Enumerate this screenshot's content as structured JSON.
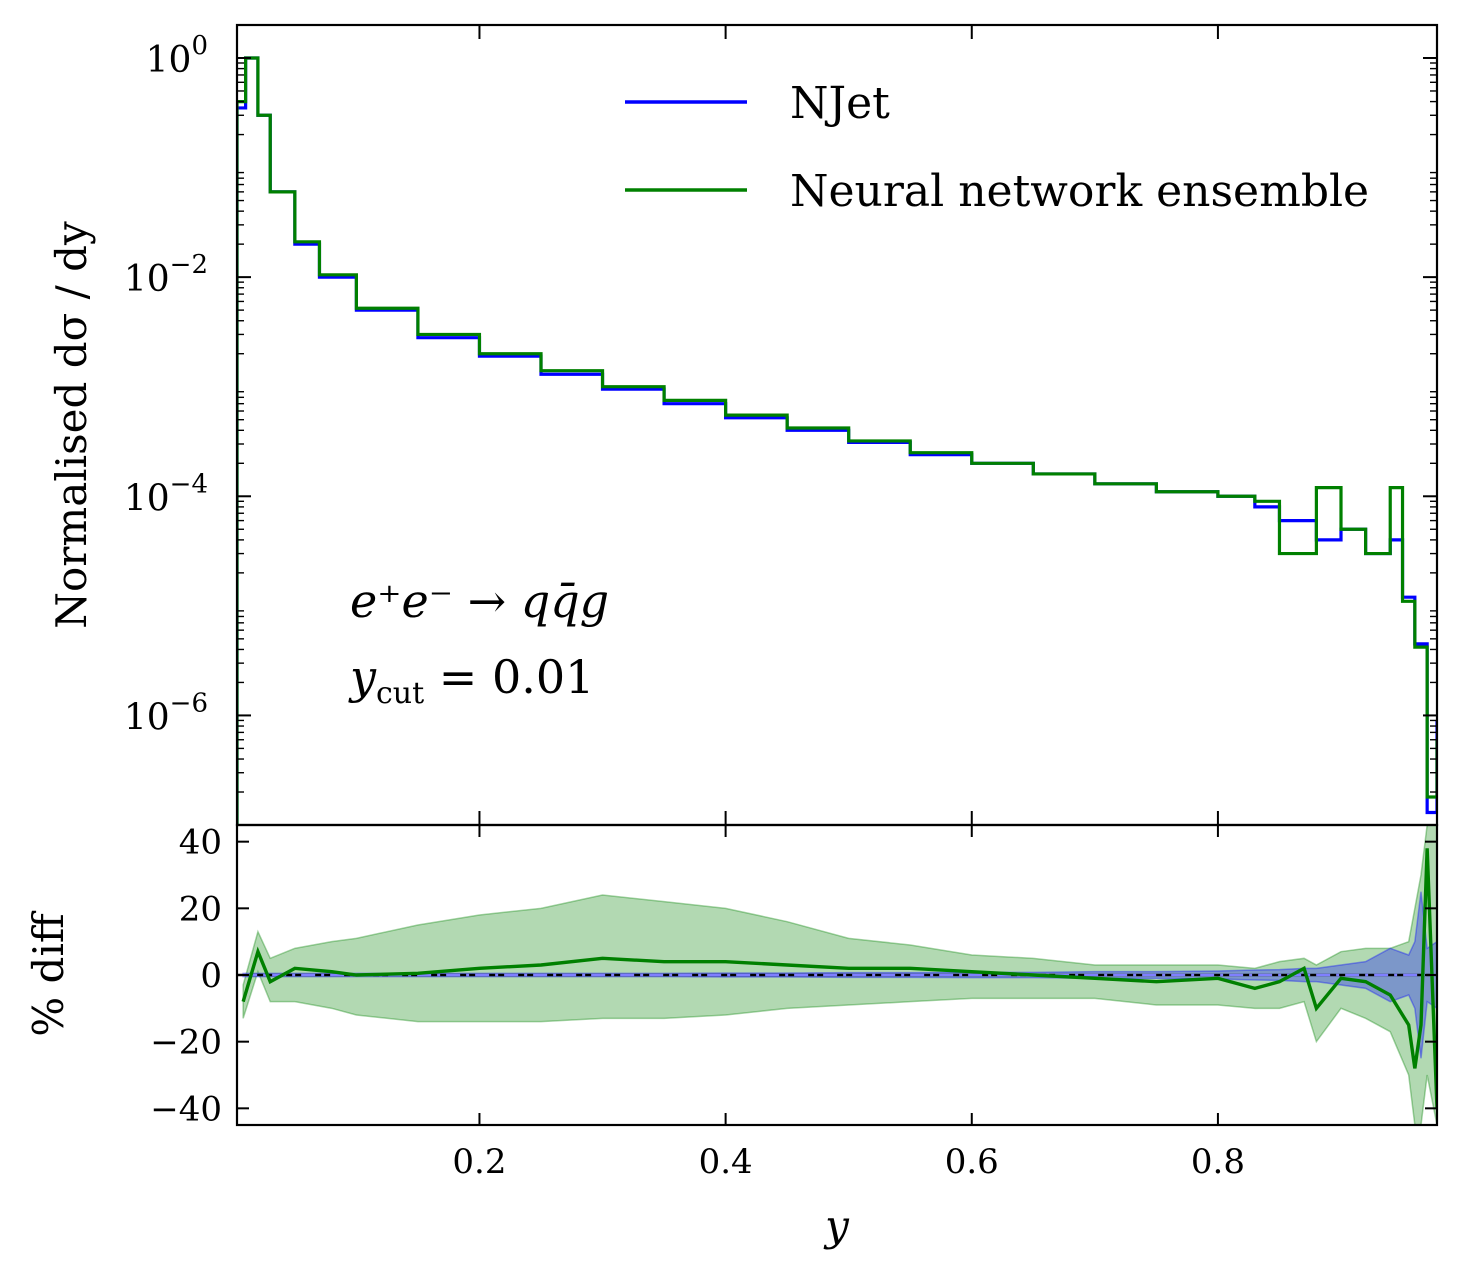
{
  "chart_data": [
    {
      "type": "line",
      "panel": "main",
      "ylabel": "Normalised dσ / dy",
      "yscale": "log",
      "xlim": [
        0.003,
        0.978
      ],
      "ylim": [
        1e-07,
        2
      ],
      "y_ticks": [
        {
          "value": 1,
          "base": "10",
          "exp": "0"
        },
        {
          "value": 0.01,
          "base": "10",
          "exp": "−2"
        },
        {
          "value": 0.0001,
          "base": "10",
          "exp": "−4"
        },
        {
          "value": 1e-06,
          "base": "10",
          "exp": "−6"
        }
      ],
      "legend": {
        "position": "top-right",
        "entries": [
          "NJet",
          "Neural network ensemble"
        ]
      },
      "annotations": [
        {
          "name": "process",
          "text": "e⁺e⁻ → qq̄g"
        },
        {
          "name": "ycut",
          "text": "y",
          "sub": "cut",
          "rest": " = 0.01"
        }
      ],
      "series": [
        {
          "name": "NJet",
          "color": "#0000ff",
          "x": [
            0.003,
            0.01,
            0.02,
            0.03,
            0.05,
            0.07,
            0.1,
            0.15,
            0.2,
            0.25,
            0.3,
            0.35,
            0.4,
            0.45,
            0.5,
            0.55,
            0.6,
            0.65,
            0.7,
            0.75,
            0.8,
            0.83,
            0.85,
            0.88,
            0.9,
            0.92,
            0.94,
            0.95,
            0.96,
            0.97,
            0.978
          ],
          "y": [
            0.35,
            1.0,
            0.3,
            0.06,
            0.02,
            0.01,
            0.005,
            0.0028,
            0.0019,
            0.0013,
            0.00095,
            0.0007,
            0.00052,
            0.0004,
            0.00031,
            0.00024,
            0.0002,
            0.00016,
            0.00013,
            0.00011,
            0.0001,
            8e-05,
            6e-05,
            4e-05,
            5e-05,
            3e-05,
            4e-05,
            1.2e-05,
            4.5e-06,
            1.3e-07,
            9e-07
          ]
        },
        {
          "name": "Neural network ensemble",
          "color": "#008000",
          "x": [
            0.003,
            0.01,
            0.02,
            0.03,
            0.05,
            0.07,
            0.1,
            0.15,
            0.2,
            0.25,
            0.3,
            0.35,
            0.4,
            0.45,
            0.5,
            0.55,
            0.6,
            0.65,
            0.7,
            0.75,
            0.8,
            0.83,
            0.85,
            0.88,
            0.9,
            0.92,
            0.94,
            0.95,
            0.96,
            0.97,
            0.978
          ],
          "y": [
            0.4,
            1.0,
            0.3,
            0.06,
            0.021,
            0.0105,
            0.0052,
            0.003,
            0.002,
            0.0014,
            0.001,
            0.00075,
            0.00055,
            0.00042,
            0.00032,
            0.00025,
            0.0002,
            0.00016,
            0.00013,
            0.00011,
            0.0001,
            9e-05,
            3e-05,
            0.00012,
            5e-05,
            3e-05,
            0.00012,
            1.1e-05,
            4.2e-06,
            1.8e-07,
            6e-07
          ]
        }
      ]
    },
    {
      "type": "line",
      "panel": "ratio",
      "xlabel": "y",
      "ylabel": "% diff",
      "xlim": [
        0.003,
        0.978
      ],
      "ylim": [
        -45,
        45
      ],
      "x_ticks": [
        0.2,
        0.4,
        0.6,
        0.8
      ],
      "y_ticks": [
        {
          "value": 40,
          "label": "40"
        },
        {
          "value": 20,
          "label": "20"
        },
        {
          "value": 0,
          "label": "0"
        },
        {
          "value": -20,
          "label": "−20"
        },
        {
          "value": -40,
          "label": "−40"
        }
      ],
      "reference_line": 0,
      "x": [
        0.008,
        0.02,
        0.03,
        0.05,
        0.08,
        0.1,
        0.15,
        0.2,
        0.25,
        0.3,
        0.35,
        0.4,
        0.45,
        0.5,
        0.55,
        0.6,
        0.65,
        0.7,
        0.75,
        0.8,
        0.83,
        0.85,
        0.87,
        0.88,
        0.9,
        0.92,
        0.94,
        0.955,
        0.96,
        0.965,
        0.97,
        0.978
      ],
      "series": [
        {
          "name": "Neural network ensemble",
          "color": "#008000",
          "values": [
            -8,
            7,
            -2,
            2,
            1,
            0,
            0.5,
            2,
            3,
            5,
            4,
            4,
            3,
            2,
            2,
            1,
            0,
            -1,
            -2,
            -1,
            -4,
            -2,
            2,
            -10,
            -1,
            -2,
            -6,
            -15,
            -28,
            -15,
            38,
            -40
          ],
          "band_upper": [
            -3,
            13,
            5,
            8,
            10,
            11,
            15,
            18,
            20,
            24,
            22,
            20,
            16,
            11,
            9,
            6,
            5,
            3,
            3,
            3,
            2,
            4,
            5,
            3,
            7,
            8,
            8,
            10,
            20,
            30,
            45,
            45
          ],
          "band_lower": [
            -13,
            1,
            -8,
            -8,
            -10,
            -12,
            -14,
            -14,
            -14,
            -13,
            -13,
            -12,
            -10,
            -9,
            -8,
            -7,
            -7,
            -7,
            -9,
            -9,
            -10,
            -10,
            -8,
            -20,
            -10,
            -13,
            -17,
            -30,
            -45,
            -45,
            -30,
            -45
          ]
        },
        {
          "name": "NJet",
          "color": "#0000ff",
          "values": [
            0,
            0,
            0,
            0,
            0,
            0,
            0,
            0,
            0,
            0,
            0,
            0,
            0,
            0,
            0,
            0,
            0,
            0,
            0,
            0,
            0,
            0,
            0,
            0,
            0,
            0,
            0,
            0,
            0,
            0,
            0,
            0
          ],
          "band_upper": [
            0.5,
            0.5,
            0.5,
            0.5,
            0.5,
            0.5,
            0.5,
            0.5,
            0.5,
            0.5,
            0.5,
            0.6,
            0.6,
            0.7,
            0.7,
            0.8,
            0.8,
            1,
            1,
            1.2,
            1.5,
            1.6,
            2,
            2,
            3,
            4,
            8,
            6,
            10,
            25,
            8,
            10
          ],
          "band_lower": [
            -0.5,
            -0.5,
            -0.5,
            -0.5,
            -0.5,
            -0.5,
            -0.5,
            -0.5,
            -0.5,
            -0.5,
            -0.5,
            -0.6,
            -0.6,
            -0.7,
            -0.7,
            -0.8,
            -0.8,
            -1,
            -1,
            -1.2,
            -1.5,
            -1.6,
            -2,
            -2,
            -3,
            -4,
            -8,
            -6,
            -10,
            -25,
            -8,
            -10
          ]
        }
      ]
    }
  ]
}
